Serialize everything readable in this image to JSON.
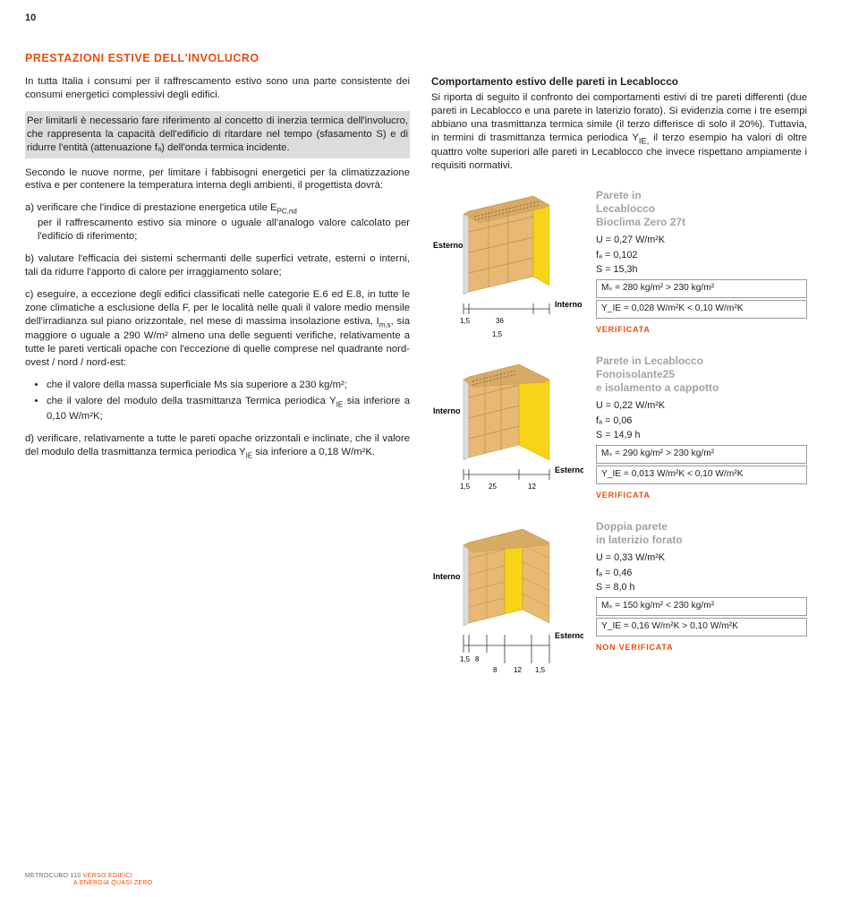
{
  "page_number": "10",
  "main_title": "PRESTAZIONI ESTIVE DELL'INVOLUCRO",
  "intro_p": "In tutta Italia i consumi per il raffrescamento estivo sono una parte consistente dei consumi energetici complessivi degli edifici.",
  "highlight_p": "Per limitarli è necessario fare riferimento al concetto di inerzia termica dell'involucro, che rappresenta la capacità dell'edificio di ritardare nel tempo (sfasamento S) e di ridurre l'entità (attenuazione fₐ) dell'onda termica incidente.",
  "p2": "Secondo le nuove norme, per limitare i fabbisogni energetici per la climatizzazione estiva e per contenere la temperatura interna degli ambienti, il progettista dovrà:",
  "item_a": "a) verificare che l'indice di prestazione energetica utile E",
  "item_a_sub": "PC,nd",
  "item_a_cont": " per il raffrescamento estivo sia minore o uguale all'analogo valore calcolato per l'edificio di riferimento;",
  "item_b": "b) valutare l'efficacia dei sistemi schermanti delle superfici vetrate, esterni o interni, tali da ridurre l'apporto di calore per irraggiamento solare;",
  "item_c_1": "c) eseguire, a eccezione degli edifici classificati nelle categorie E.6 ed E.8, in tutte le zone climatiche a esclusione della F, per le località nelle quali il valore medio mensile dell'irradianza sul piano orizzontale, nel mese di massima insolazione estiva, I",
  "item_c_sub": "m,s",
  "item_c_2": ", sia maggiore o uguale a 290 W/m² almeno una delle seguenti verifiche, relativamente a tutte le pareti verticali opache con l'eccezione di quelle comprese nel quadrante nord-ovest / nord / nord-est:",
  "bullet1a": "che il valore della massa superficiale Ms sia superiore a 230 kg/m²;",
  "bullet1b_1": "che il valore del modulo della trasmittanza Termica periodica Y",
  "bullet1b_sub": "IE",
  "bullet1b_2": " sia inferiore a 0,10 W/m²K;",
  "item_d_1": "d) verificare, relativamente a tutte le pareti opache orizzontali e inclinate, che il valore del modulo della trasmittanza termica periodica Y",
  "item_d_sub": "IE",
  "item_d_2": " sia inferiore a 0,18 W/m²K.",
  "right_heading": "Comportamento estivo delle pareti in Lecablocco",
  "right_intro_1": "Si riporta di seguito il confronto dei comportamenti estivi di tre pareti differenti (due pareti in Lecablocco e una parete in laterizio forato). Si evidenzia come i tre esempi abbiano una trasmittanza termica simile (il terzo differisce di solo il 20%). Tuttavia, in termini di trasmittanza termica periodica Y",
  "right_intro_sub": "IE,",
  "right_intro_2": " il terzo esempio ha valori di oltre quattro volte superiori alle pareti in Lecablocco che invece rispettano ampiamente i requisiti normativi.",
  "panels": [
    {
      "ext_label": "Esterno",
      "int_label": "Interno",
      "dims": {
        "left_gap": "1,5",
        "width": "36",
        "right_gap": "1,5"
      },
      "title": "Parete in\nLecablocco\nBioclima Zero 27t",
      "lines": [
        "U = 0,27 W/m²K",
        "fₐ = 0,102",
        "S = 15,3h"
      ],
      "box1": "Mₛ = 280 kg/m² > 230 kg/m²",
      "box2": "Y_IE = 0,028 W/m²K < 0,10 W/m²K",
      "status": "VERIFICATA"
    },
    {
      "ext_label": "Interno",
      "int_label": "Esterno",
      "dims": {
        "left_gap": "1,5",
        "width": "25",
        "right_gap": "12"
      },
      "title": "Parete in Lecablocco\nFonoisolante25\ne isolamento a cappotto",
      "lines": [
        "U = 0,22 W/m²K",
        "fₐ = 0,06",
        "S = 14,9 h"
      ],
      "box1": "Mₛ = 290 kg/m² > 230 kg/m²",
      "box2": "Y_IE = 0,013 W/m²K < 0,10 W/m²K",
      "status": "VERIFICATA"
    },
    {
      "ext_label": "Interno",
      "int_label": "Esterno",
      "dims": {
        "left_gap": "1,5",
        "w1": "8",
        "w2": "8",
        "w3": "12",
        "right_gap": "1,5"
      },
      "title": "Doppia parete\nin laterizio forato",
      "lines": [
        "U = 0,33 W/m²K",
        "fₐ = 0,46",
        "S = 8,0 h"
      ],
      "box1": "Mₛ = 150 kg/m² < 230 kg/m²",
      "box2": "Y_IE = 0,16 W/m²K > 0,10 W/m²K",
      "status": "NON VERIFICATA"
    }
  ],
  "footer": {
    "label": "METROCUBO 110",
    "title1": "VERSO EDIFICI",
    "title2": "A ENERGIA QUASI ZERO"
  },
  "colors": {
    "orange": "#e84d0e",
    "grey_title": "#a1a3a5",
    "block_fill": "#e8b972",
    "block_stroke": "#b98e4c",
    "yellow": "#f7d417",
    "plaster": "#dedede"
  }
}
